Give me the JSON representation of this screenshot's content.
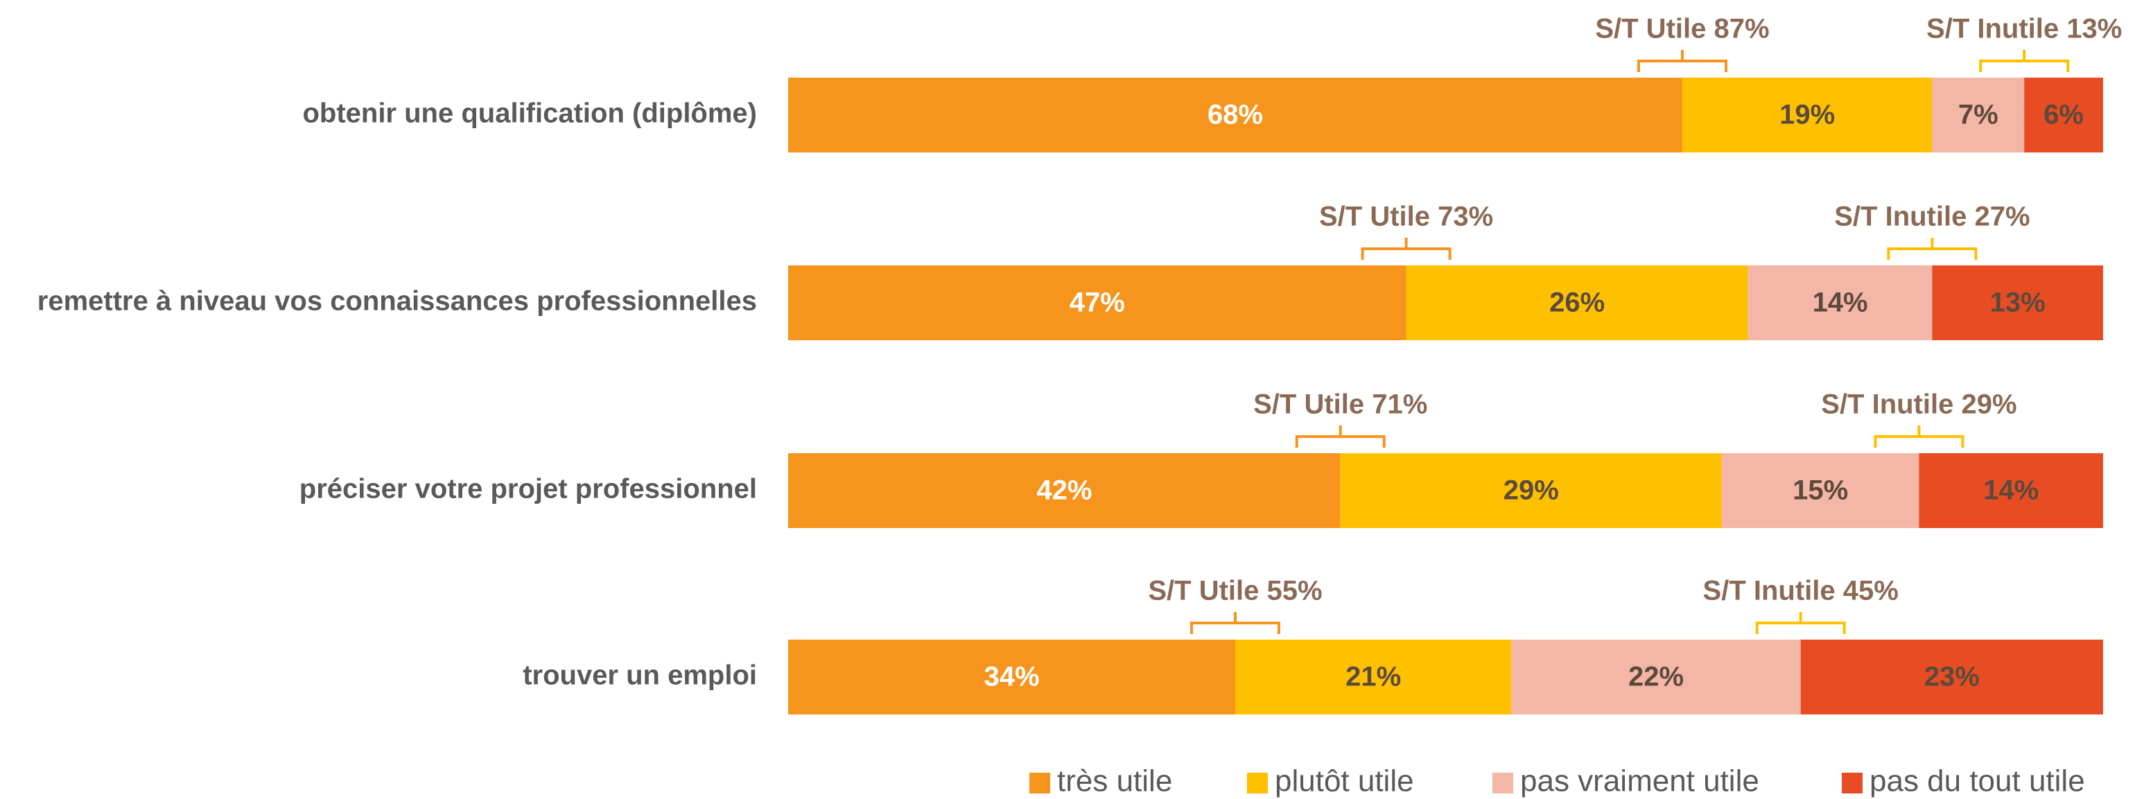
{
  "chart_data": {
    "type": "bar",
    "orientation": "horizontal",
    "stacked": true,
    "categories": [
      "obtenir une qualification (diplôme)",
      "remettre à niveau vos connaissances professionnelles",
      "préciser votre projet professionnel",
      "trouver un emploi"
    ],
    "series": [
      {
        "name": "très utile",
        "color": "#F7941D",
        "label_color": "#FFFFFF",
        "values": [
          68,
          47,
          42,
          34
        ],
        "value_labels": [
          "68%",
          "47%",
          "42%",
          "34%"
        ]
      },
      {
        "name": "plutôt utile",
        "color": "#FFC000",
        "label_color": "#5B4A3C",
        "values": [
          19,
          26,
          29,
          21
        ],
        "value_labels": [
          "19%",
          "26%",
          "29%",
          "21%"
        ]
      },
      {
        "name": "pas vraiment utile",
        "color": "#F4B6A6",
        "label_color": "#5B4A3C",
        "values": [
          7,
          14,
          15,
          22
        ],
        "value_labels": [
          "7%",
          "14%",
          "15%",
          "22%"
        ]
      },
      {
        "name": "pas du tout utile",
        "color": "#E84C22",
        "label_color": "#5B4A3C",
        "values": [
          6,
          13,
          14,
          23
        ],
        "value_labels": [
          "6%",
          "13%",
          "14%",
          "23%"
        ]
      }
    ],
    "annotations": [
      {
        "utile": "S/T Utile 87%",
        "inutile": "S/T Inutile 13%"
      },
      {
        "utile": "S/T Utile 73%",
        "inutile": "S/T Inutile 27%"
      },
      {
        "utile": "S/T Utile 71%",
        "inutile": "S/T Inutile 29%"
      },
      {
        "utile": "S/T Utile 55%",
        "inutile": "S/T Inutile 45%"
      }
    ],
    "legend": "bottom-right"
  }
}
